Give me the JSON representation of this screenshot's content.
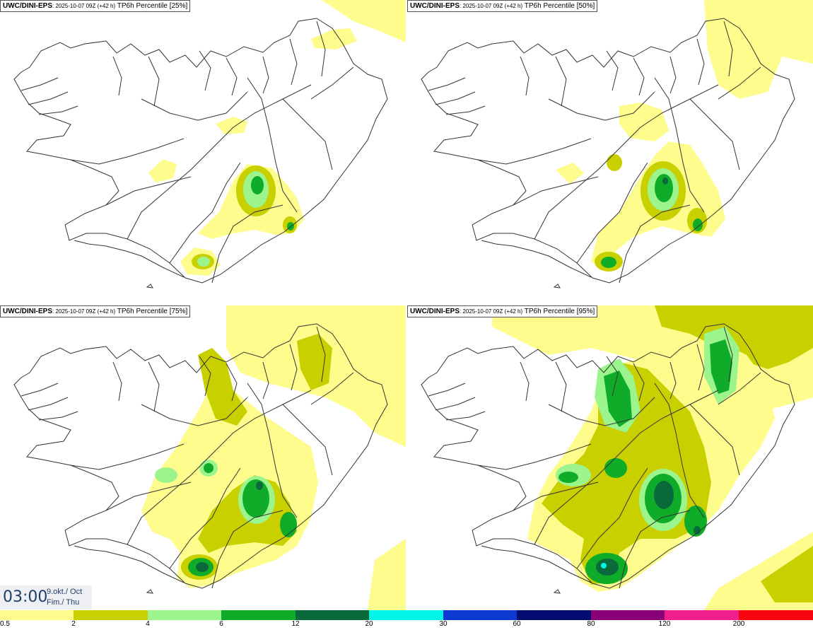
{
  "panels": [
    {
      "model": "UWC/DINI-EPS",
      "run": ": 2025-10-07 09Z (+42 h)",
      "product": "TP6h Percentile [25%]"
    },
    {
      "model": "UWC/DINI-EPS",
      "run": ": 2025-10-07 09Z (+42 h)",
      "product": "TP6h Percentile [50%]"
    },
    {
      "model": "UWC/DINI-EPS",
      "run": ": 2025-10-07 09Z (+42 h)",
      "product": "TP6h Percentile [75%]"
    },
    {
      "model": "UWC/DINI-EPS",
      "run": ": 2025-10-07 09Z (+42 h)",
      "product": "TP6h Percentile [95%]"
    }
  ],
  "time": {
    "clock": "03:00",
    "date_line1": "9.okt./ Oct",
    "date_line2": "Fim./ Thu"
  },
  "legend": {
    "ticks": [
      "0.5",
      "2",
      "4",
      "6",
      "12",
      "20",
      "30",
      "60",
      "80",
      "120",
      "200"
    ],
    "colors": [
      "#fdfc8c",
      "#c8d000",
      "#9cf48c",
      "#0fac2a",
      "#0b6a3c",
      "#05f4e8",
      "#0c3ad0",
      "#030c70",
      "#8a0079",
      "#f01f8c",
      "#f80410"
    ]
  }
}
